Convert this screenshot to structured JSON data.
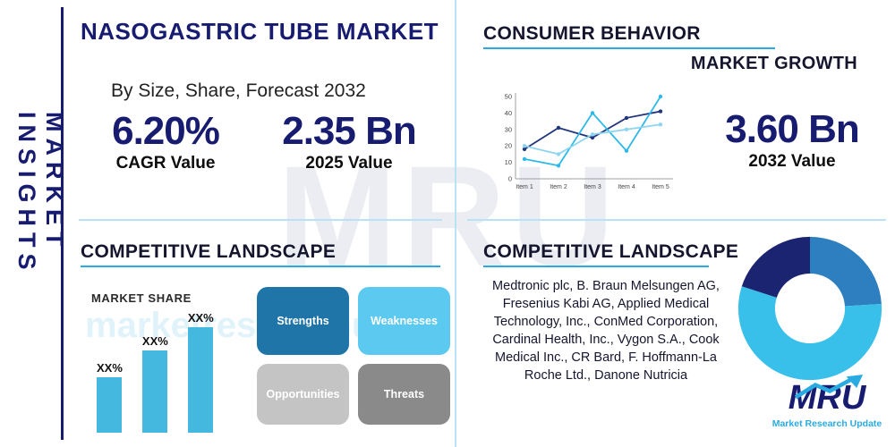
{
  "palette": {
    "navy": "#181c70",
    "heading_dark": "#15162e",
    "underline_blue": "#29abe2",
    "divider_blue": "#b9e2f5",
    "bar_cyan": "#45b8e0",
    "swot_strengths": "#1f74a8",
    "swot_weaknesses": "#5bc9f0",
    "swot_opportunities": "#c4c4c4",
    "swot_threats": "#8a8a8a",
    "logo_cyan": "#29abe2"
  },
  "sidebar": {
    "title": "MARKET INSIGHTS"
  },
  "header": {
    "title": "NASOGASTRIC TUBE MARKET",
    "subtitle": "By Size, Share, Forecast 2032"
  },
  "stats": {
    "cagr_value": "6.20%",
    "cagr_label": "CAGR Value",
    "v2025_value": "2.35 Bn",
    "v2025_label": "2025 Value",
    "v2032_value": "3.60 Bn",
    "v2032_label": "2032 Value"
  },
  "sections": {
    "consumer_behavior": "CONSUMER BEHAVIOR",
    "market_growth": "MARKET GROWTH",
    "competitive_landscape_left": "COMPETITIVE LANDSCAPE",
    "competitive_landscape_right": "COMPETITIVE LANDSCAPE"
  },
  "swot": {
    "strengths": "Strengths",
    "weaknesses": "Weaknesses",
    "opportunities": "Opportunities",
    "threats": "Threats"
  },
  "companies": "Medtronic plc, B. Braun Melsungen AG, Fresenius Kabi AG, Applied Medical Technology, Inc., ConMed Corporation, Cardinal Health, Inc., Vygon S.A., Cook Medical Inc., CR Bard, F. Hoffmann-La Roche Ltd., Danone Nutricia",
  "logo": {
    "text": "MRU",
    "tagline": "Market Research Update"
  },
  "watermark": {
    "big": "MRU",
    "url": "marketresearchupdate.com"
  },
  "chart_data": [
    {
      "id": "consumer-behavior-line",
      "type": "line",
      "title": "CONSUMER BEHAVIOR",
      "x": [
        "Item 1",
        "Item 2",
        "Item 3",
        "Item 4",
        "Item 5"
      ],
      "ylim": [
        0,
        50
      ],
      "yticks": [
        0,
        10,
        20,
        30,
        40,
        50
      ],
      "grid": false,
      "legend": "none",
      "series": [
        {
          "name": "series-navy",
          "color": "#23357c",
          "values": [
            18,
            31,
            25,
            37,
            41
          ]
        },
        {
          "name": "series-cyan",
          "color": "#2fb9e8",
          "values": [
            12,
            8,
            40,
            17,
            50
          ]
        },
        {
          "name": "series-light-blue",
          "color": "#8ed5f0",
          "values": [
            20,
            15,
            27,
            30,
            33
          ]
        }
      ]
    },
    {
      "id": "market-share-bar",
      "type": "bar",
      "title": "MARKET SHARE",
      "categories": [
        "XX%",
        "XX%",
        "XX%"
      ],
      "values": [
        31,
        46,
        59
      ],
      "ylim": [
        0,
        100
      ],
      "color": "#45b8e0"
    },
    {
      "id": "competitive-donut",
      "type": "pie",
      "donut": true,
      "slices": [
        {
          "name": "segment-blue",
          "value": 24,
          "color": "#2e7fc0"
        },
        {
          "name": "segment-cyan",
          "value": 56,
          "color": "#38c0ea"
        },
        {
          "name": "segment-navy",
          "value": 20,
          "color": "#1b2470"
        }
      ]
    }
  ]
}
